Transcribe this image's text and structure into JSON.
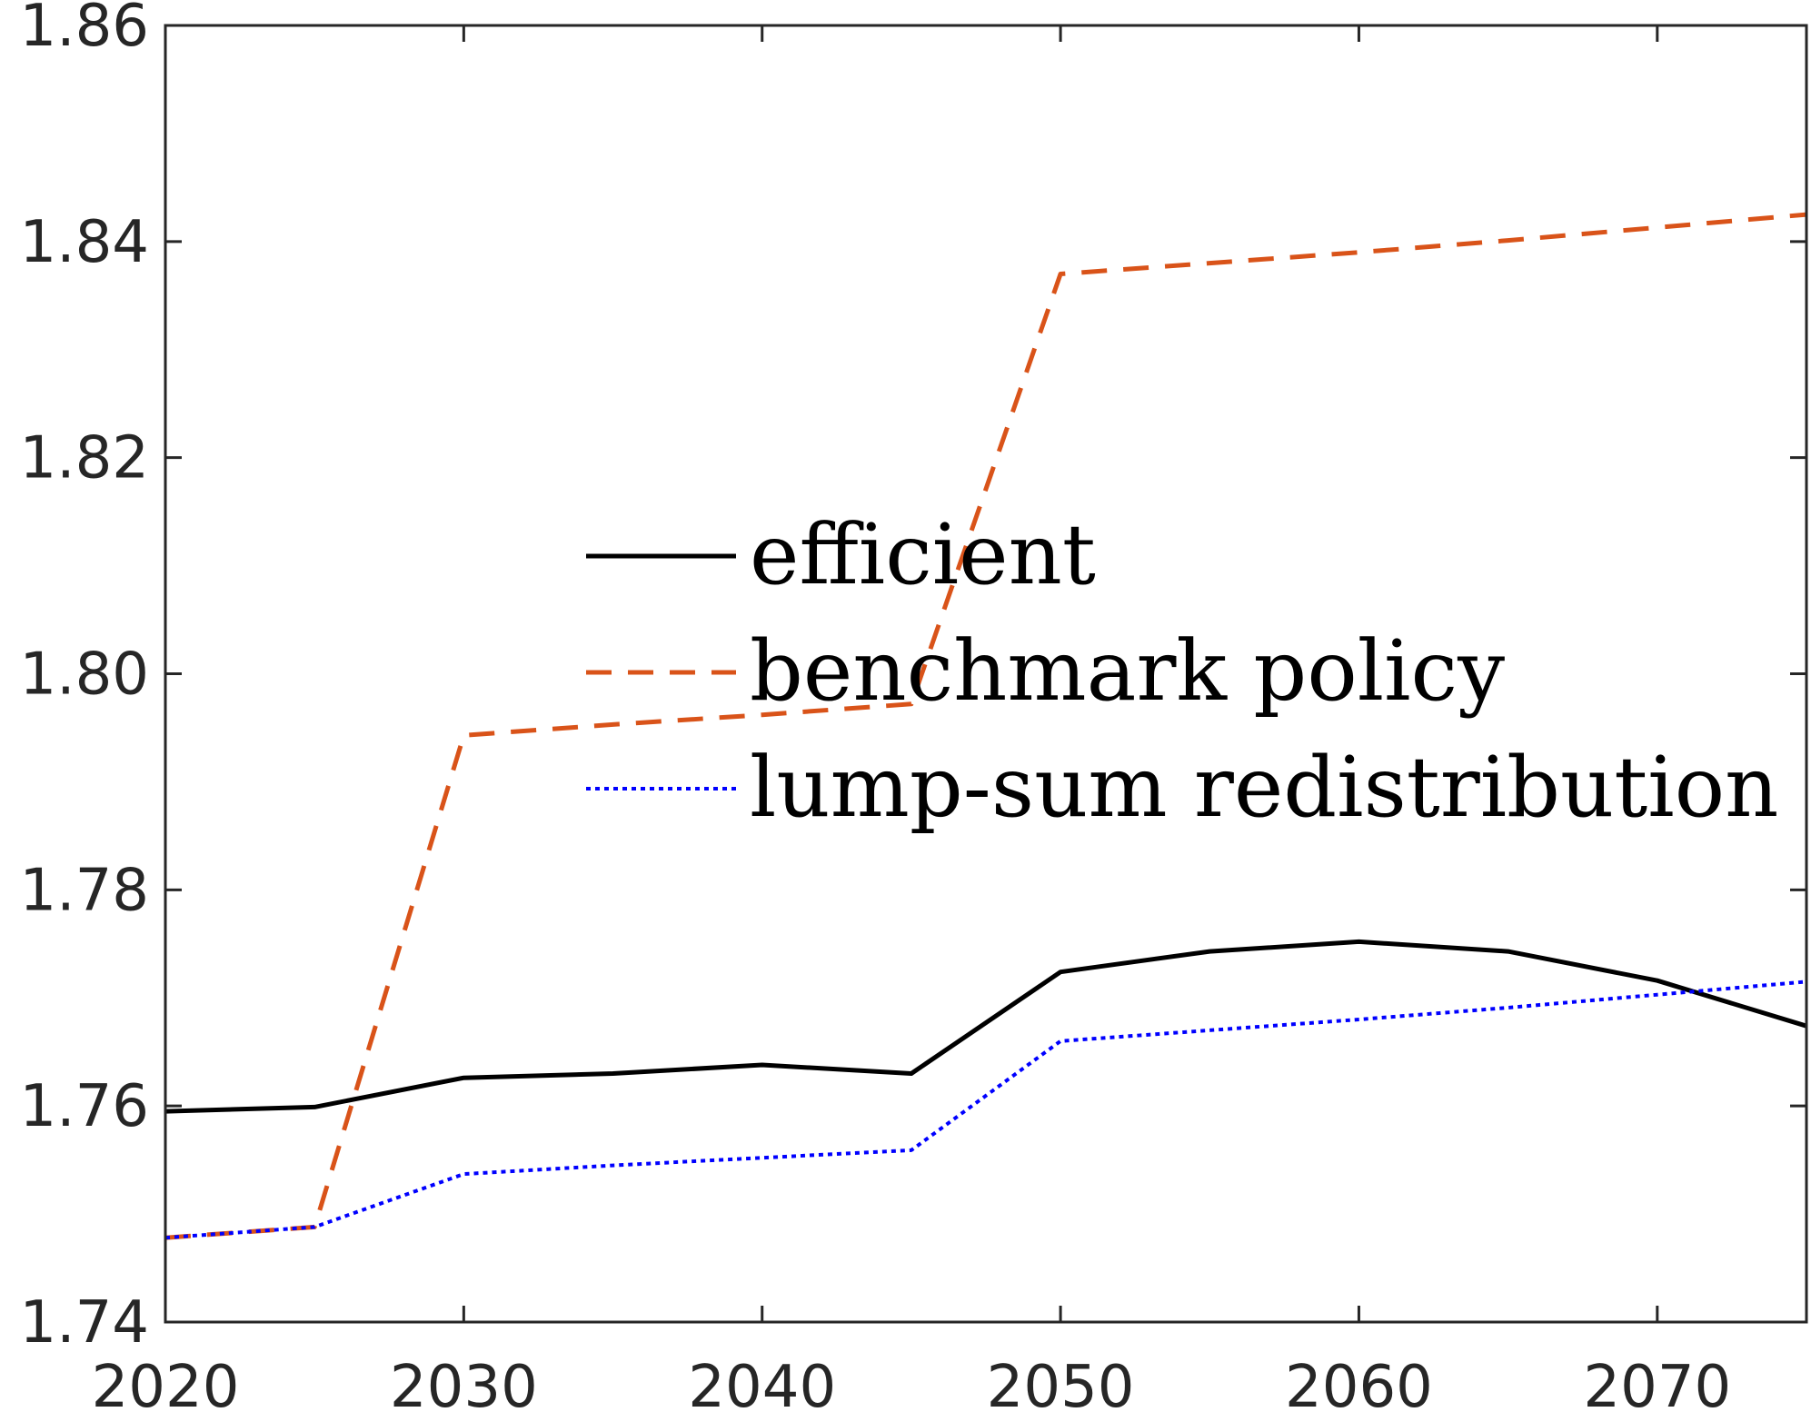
{
  "chart_data": {
    "type": "line",
    "title": "",
    "xlabel": "",
    "ylabel": "",
    "xlim": [
      2020,
      2075
    ],
    "ylim": [
      1.74,
      1.86
    ],
    "x_ticks": [
      "2020",
      "2030",
      "2040",
      "2050",
      "2060",
      "2070"
    ],
    "y_ticks": [
      "1.74",
      "1.76",
      "1.78",
      "1.80",
      "1.82",
      "1.84",
      "1.86"
    ],
    "grid": false,
    "legend_position": "center",
    "series": [
      {
        "name": "efficient",
        "style": "solid",
        "color": "#000000",
        "x": [
          2020,
          2025,
          2030,
          2035,
          2040,
          2045,
          2050,
          2055,
          2060,
          2065,
          2070,
          2075
        ],
        "y": [
          1.7595,
          1.7599,
          1.7626,
          1.763,
          1.7638,
          1.763,
          1.7724,
          1.7743,
          1.7752,
          1.7743,
          1.7716,
          1.7674
        ]
      },
      {
        "name": "benchmark policy",
        "style": "dashed",
        "color": "#D95319",
        "x": [
          2020,
          2025,
          2030,
          2035,
          2040,
          2045,
          2050,
          2055,
          2060,
          2065,
          2070,
          2075
        ],
        "y": [
          1.7478,
          1.7488,
          1.7943,
          1.7953,
          1.7962,
          1.7972,
          1.837,
          1.838,
          1.839,
          1.8401,
          1.8413,
          1.8425
        ]
      },
      {
        "name": "lump-sum redistribution",
        "style": "dotted",
        "color": "#0000FF",
        "x": [
          2020,
          2025,
          2030,
          2035,
          2040,
          2045,
          2050,
          2055,
          2060,
          2065,
          2070,
          2075
        ],
        "y": [
          1.7478,
          1.7488,
          1.7537,
          1.7545,
          1.7552,
          1.7559,
          1.766,
          1.767,
          1.768,
          1.7691,
          1.7703,
          1.7715
        ]
      }
    ]
  }
}
